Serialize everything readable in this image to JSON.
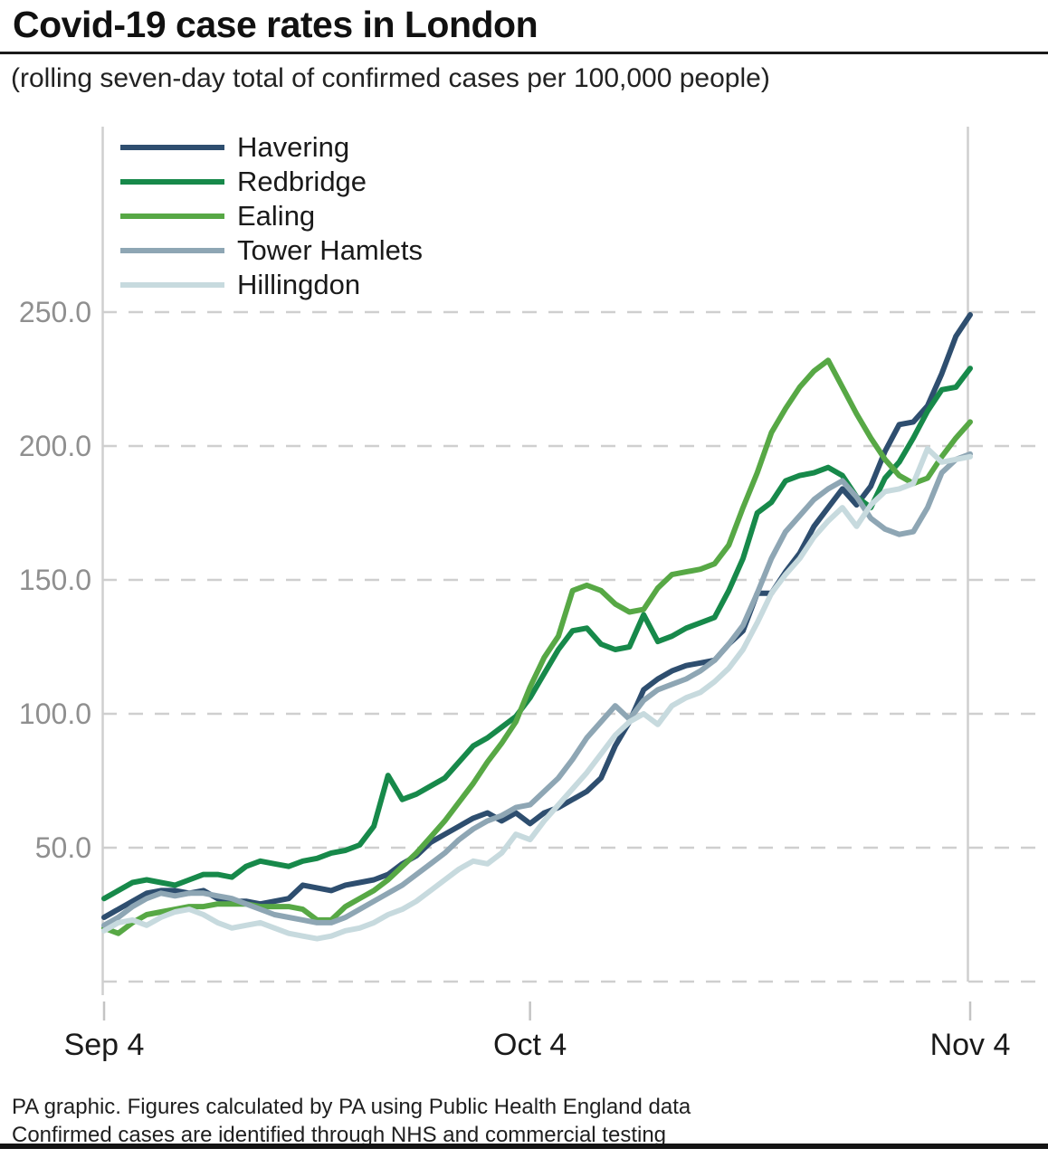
{
  "header": {
    "title": "Covid-19 case rates in London",
    "subtitle": "(rolling seven-day total of confirmed cases per 100,000 people)"
  },
  "footer": {
    "line1": "PA graphic. Figures calculated by PA using Public Health England data",
    "line2": "Confirmed cases are identified through NHS and commercial testing"
  },
  "colors": {
    "background": "#ffffff",
    "gridline": "#cfcfcf",
    "axis_line": "#cfcfcf",
    "tick": "#c4c4c4",
    "y_label": "#8f8f8f",
    "x_label": "#1a1a1a",
    "title": "#111111",
    "rule": "#1a1a1a",
    "bottom_bar": "#141414"
  },
  "chart_data": {
    "type": "line",
    "title": "Covid-19 case rates in London",
    "subtitle": "(rolling seven-day total of confirmed cases per 100,000 people)",
    "xlabel": "",
    "ylabel": "confirmed cases per 100,000 people (rolling seven-day total)",
    "x_count": 62,
    "x_tick_labels": [
      "Sep 4",
      "Oct 4",
      "Nov 4"
    ],
    "x_tick_indices": [
      0,
      30,
      61
    ],
    "ylim": [
      0,
      260
    ],
    "y_ticks": [
      {
        "label": "250.0",
        "value": 250
      },
      {
        "label": "200.0",
        "value": 200
      },
      {
        "label": "150.0",
        "value": 150
      },
      {
        "label": "100.0",
        "value": 100
      },
      {
        "label": "50.0",
        "value": 50
      }
    ],
    "grid": "dashed-horizontal",
    "legend_position": "top-left-inside",
    "series": [
      {
        "name": "Havering",
        "color": "#2e4e6f",
        "values": [
          24,
          27,
          30,
          33,
          34,
          34,
          33,
          34,
          31,
          30,
          30,
          29,
          30,
          31,
          36,
          35,
          34,
          36,
          37,
          38,
          40,
          44,
          47,
          52,
          55,
          58,
          61,
          63,
          60,
          63,
          59,
          63,
          65,
          68,
          71,
          76,
          88,
          97,
          109,
          113,
          116,
          118,
          119,
          120,
          126,
          131,
          145,
          145,
          153,
          160,
          170,
          177,
          184,
          178,
          185,
          198,
          208,
          209,
          215,
          227,
          241,
          249
        ]
      },
      {
        "name": "Redbridge",
        "color": "#17894a",
        "values": [
          31,
          34,
          37,
          38,
          37,
          36,
          38,
          40,
          40,
          39,
          43,
          45,
          44,
          43,
          45,
          46,
          48,
          49,
          51,
          58,
          77,
          68,
          70,
          73,
          76,
          82,
          88,
          91,
          95,
          99,
          106,
          115,
          124,
          131,
          132,
          126,
          124,
          125,
          137,
          127,
          129,
          132,
          134,
          136,
          146,
          158,
          175,
          179,
          187,
          189,
          190,
          192,
          189,
          181,
          177,
          188,
          194,
          203,
          213,
          221,
          222,
          229
        ]
      },
      {
        "name": "Ealing",
        "color": "#57a845",
        "values": [
          20,
          18,
          22,
          25,
          26,
          27,
          28,
          28,
          29,
          29,
          29,
          28,
          28,
          28,
          27,
          23,
          23,
          28,
          31,
          34,
          38,
          43,
          48,
          54,
          60,
          67,
          74,
          82,
          89,
          97,
          110,
          121,
          129,
          146,
          148,
          146,
          141,
          138,
          139,
          147,
          152,
          153,
          154,
          156,
          163,
          177,
          190,
          205,
          214,
          222,
          228,
          232,
          222,
          212,
          203,
          195,
          189,
          186,
          188,
          196,
          203,
          209
        ]
      },
      {
        "name": "Tower Hamlets",
        "color": "#8ea6b4",
        "values": [
          21,
          24,
          28,
          31,
          33,
          32,
          33,
          33,
          32,
          31,
          29,
          27,
          25,
          24,
          23,
          22,
          22,
          24,
          27,
          30,
          33,
          36,
          40,
          44,
          48,
          53,
          57,
          60,
          62,
          65,
          66,
          71,
          76,
          83,
          91,
          97,
          103,
          98,
          105,
          109,
          111,
          113,
          116,
          120,
          126,
          133,
          145,
          158,
          168,
          174,
          180,
          184,
          187,
          181,
          173,
          169,
          167,
          168,
          177,
          190,
          195,
          197
        ]
      },
      {
        "name": "Hillingdon",
        "color": "#c7dade",
        "values": [
          19,
          22,
          23,
          21,
          24,
          26,
          27,
          25,
          22,
          20,
          21,
          22,
          20,
          18,
          17,
          16,
          17,
          19,
          20,
          22,
          25,
          27,
          30,
          34,
          38,
          42,
          45,
          44,
          48,
          55,
          53,
          60,
          66,
          72,
          78,
          85,
          92,
          97,
          100,
          96,
          103,
          106,
          108,
          112,
          117,
          124,
          134,
          145,
          152,
          158,
          166,
          172,
          177,
          170,
          178,
          183,
          184,
          186,
          199,
          194,
          195,
          196
        ]
      }
    ]
  }
}
